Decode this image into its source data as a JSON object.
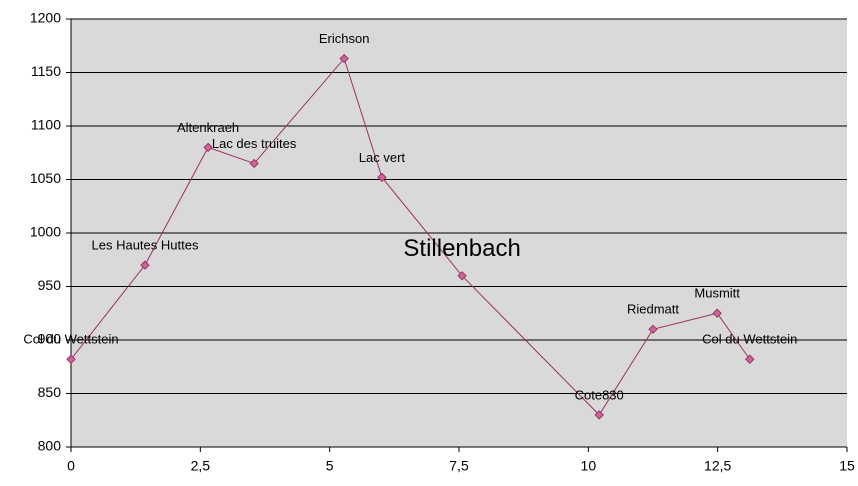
{
  "chart_data": {
    "type": "line",
    "x": [
      0,
      1.43,
      2.65,
      3.54,
      5.28,
      6.01,
      7.56,
      10.21,
      11.25,
      12.49,
      13.12
    ],
    "series": [
      {
        "color": "#993366",
        "values": [
          882,
          970,
          1080,
          1065,
          1163,
          1052,
          960,
          830,
          910,
          925,
          882
        ],
        "labels": [
          "Col du Wettstein",
          "Les Hautes Huttes",
          "Altenkraeh",
          "Lac des truites",
          "Erichson",
          "Lac vert",
          "Stillenbach",
          "Cote830",
          "Riedmatt",
          "Musmitt",
          "Col du Wettstein"
        ]
      }
    ],
    "xlim": [
      0,
      15
    ],
    "xticks": [
      0,
      {
        "value": 2.5,
        "label": "2,5"
      },
      5,
      {
        "value": 7.5,
        "label": "7,5"
      },
      10,
      {
        "value": 12.5,
        "label": "12,5"
      },
      15
    ],
    "ylim": [
      800,
      1200
    ],
    "yticks": [
      800,
      850,
      900,
      950,
      1000,
      1050,
      1100,
      1150,
      1200
    ],
    "grid": true,
    "background": "#d9d9d9",
    "marker_fill": "#cc6699"
  }
}
